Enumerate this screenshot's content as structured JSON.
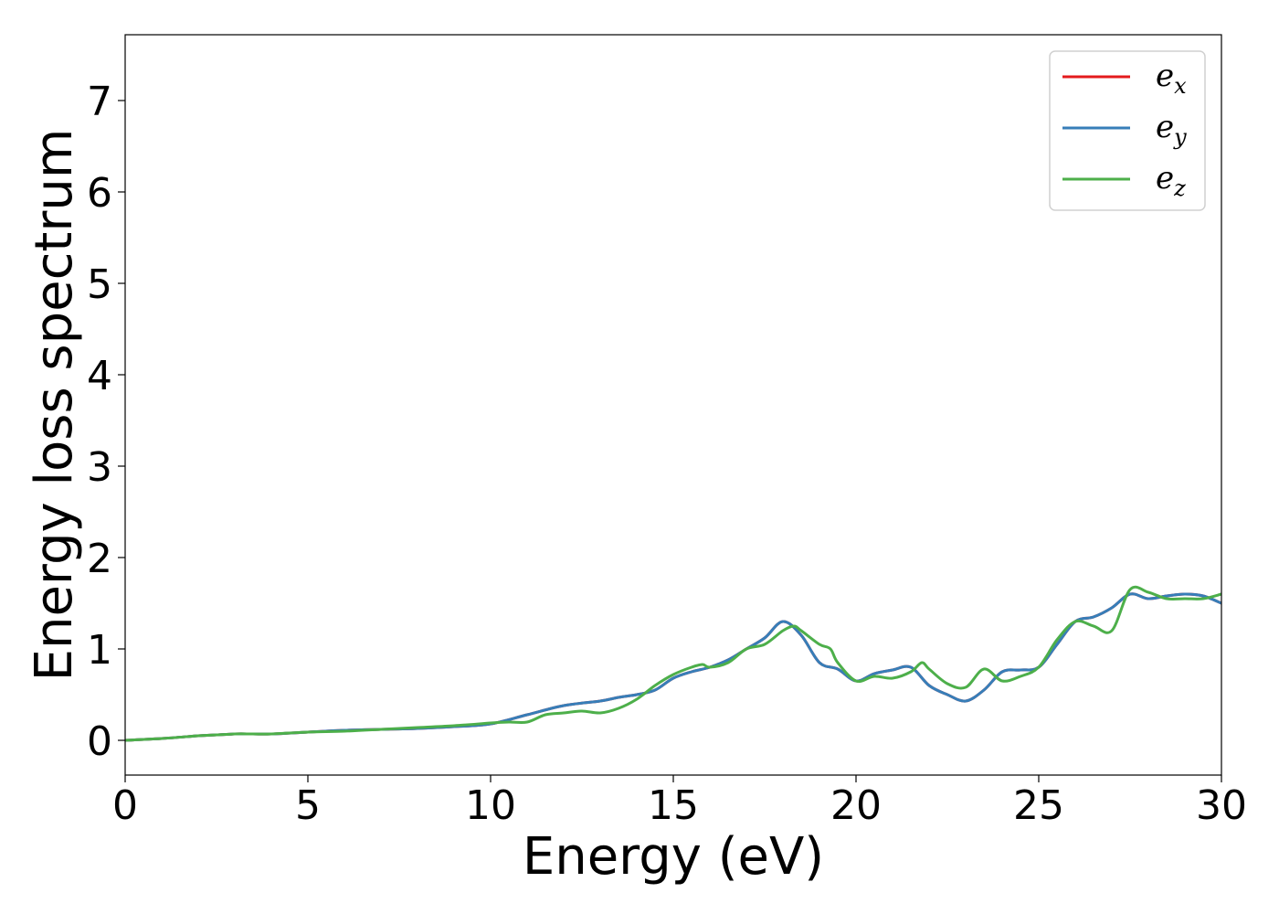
{
  "chart_data": {
    "type": "line",
    "title": "",
    "xlabel": "Energy (eV)",
    "ylabel": "Energy loss spectrum",
    "xlim": [
      0,
      30
    ],
    "ylim": [
      -0.38,
      7.72
    ],
    "xticks": [
      0,
      5,
      10,
      15,
      20,
      25,
      30
    ],
    "yticks": [
      0,
      1,
      2,
      3,
      4,
      5,
      6,
      7
    ],
    "grid": false,
    "legend_position": "top-right",
    "series": [
      {
        "name": "e_x",
        "legend_base": "e",
        "legend_sub": "x",
        "color": "#e41a1c",
        "x": [
          0,
          1,
          2,
          2.5,
          3,
          3.5,
          4,
          5,
          6,
          7,
          8,
          9,
          10,
          11,
          12,
          13,
          13.5,
          14,
          14.5,
          15,
          15.5,
          16,
          16.5,
          17,
          17.5,
          18,
          18.5,
          19,
          19.5,
          20,
          20.5,
          21,
          21.5,
          22,
          22.5,
          23,
          23.5,
          24,
          24.5,
          25,
          25.5,
          26,
          26.5,
          27,
          27.5,
          28,
          28.5,
          29,
          29.5,
          30
        ],
        "y": [
          0,
          0.02,
          0.05,
          0.06,
          0.07,
          0.07,
          0.07,
          0.09,
          0.11,
          0.12,
          0.13,
          0.15,
          0.18,
          0.28,
          0.38,
          0.43,
          0.47,
          0.5,
          0.55,
          0.68,
          0.75,
          0.8,
          0.88,
          1.0,
          1.12,
          1.3,
          1.15,
          0.85,
          0.78,
          0.65,
          0.73,
          0.77,
          0.8,
          0.6,
          0.5,
          0.43,
          0.55,
          0.75,
          0.77,
          0.8,
          1.05,
          1.3,
          1.35,
          1.45,
          1.6,
          1.55,
          1.58,
          1.6,
          1.58,
          1.5
        ]
      },
      {
        "name": "e_y",
        "legend_base": "e",
        "legend_sub": "y",
        "color": "#377eb8",
        "x": [
          0,
          1,
          2,
          2.5,
          3,
          3.5,
          4,
          5,
          6,
          7,
          8,
          9,
          10,
          11,
          12,
          13,
          13.5,
          14,
          14.5,
          15,
          15.5,
          16,
          16.5,
          17,
          17.5,
          18,
          18.5,
          19,
          19.5,
          20,
          20.5,
          21,
          21.5,
          22,
          22.5,
          23,
          23.5,
          24,
          24.5,
          25,
          25.5,
          26,
          26.5,
          27,
          27.5,
          28,
          28.5,
          29,
          29.5,
          30
        ],
        "y": [
          0,
          0.02,
          0.05,
          0.06,
          0.07,
          0.07,
          0.07,
          0.09,
          0.11,
          0.12,
          0.13,
          0.15,
          0.18,
          0.28,
          0.38,
          0.43,
          0.47,
          0.5,
          0.55,
          0.68,
          0.75,
          0.8,
          0.88,
          1.0,
          1.12,
          1.3,
          1.15,
          0.85,
          0.78,
          0.65,
          0.73,
          0.77,
          0.8,
          0.6,
          0.5,
          0.43,
          0.55,
          0.75,
          0.77,
          0.8,
          1.05,
          1.3,
          1.35,
          1.45,
          1.6,
          1.55,
          1.58,
          1.6,
          1.58,
          1.5
        ]
      },
      {
        "name": "e_z",
        "legend_base": "e",
        "legend_sub": "z",
        "color": "#4daf4a",
        "x": [
          0,
          1,
          2,
          2.5,
          3,
          3.5,
          4,
          5,
          6,
          7,
          8,
          9,
          10,
          10.5,
          11,
          11.5,
          12,
          12.5,
          13,
          13.5,
          14,
          14.5,
          15,
          15.5,
          15.8,
          16,
          16.5,
          17,
          17.5,
          18,
          18.3,
          18.5,
          19,
          19.3,
          19.5,
          20,
          20.5,
          21,
          21.5,
          21.8,
          22,
          22.5,
          23,
          23.5,
          24,
          24.5,
          25,
          25.5,
          26,
          26.5,
          27,
          27.5,
          28,
          28.5,
          29,
          29.5,
          30
        ],
        "y": [
          0,
          0.02,
          0.05,
          0.06,
          0.07,
          0.07,
          0.07,
          0.09,
          0.1,
          0.12,
          0.14,
          0.16,
          0.19,
          0.2,
          0.2,
          0.28,
          0.3,
          0.32,
          0.3,
          0.35,
          0.45,
          0.6,
          0.72,
          0.8,
          0.83,
          0.8,
          0.85,
          1.0,
          1.05,
          1.2,
          1.25,
          1.2,
          1.05,
          1.0,
          0.85,
          0.65,
          0.7,
          0.68,
          0.75,
          0.85,
          0.78,
          0.62,
          0.58,
          0.78,
          0.65,
          0.7,
          0.8,
          1.1,
          1.3,
          1.25,
          1.2,
          1.65,
          1.62,
          1.55,
          1.55,
          1.55,
          1.6
        ]
      }
    ]
  }
}
